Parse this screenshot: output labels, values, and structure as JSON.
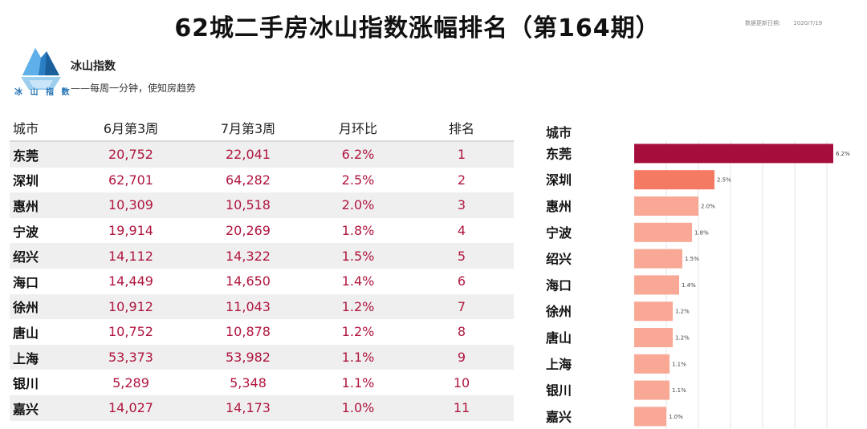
{
  "title": "62城二手房冰山指数涨幅排名（第164期）",
  "update_info": {
    "label": "数据更新日期:",
    "date": "2020/7/19"
  },
  "brand": {
    "logo_text": "冰 山 指 数",
    "name": "冰山指数",
    "slogan": "——每周一分钟，使知房趋势"
  },
  "table": {
    "headers": [
      "城市",
      "6月第3周",
      "7月第3周",
      "月环比",
      "排名"
    ],
    "rows": [
      [
        "东莞",
        "20,752",
        "22,041",
        "6.2%",
        "1"
      ],
      [
        "深圳",
        "62,701",
        "64,282",
        "2.5%",
        "2"
      ],
      [
        "惠州",
        "10,309",
        "10,518",
        "2.0%",
        "3"
      ],
      [
        "宁波",
        "19,914",
        "20,269",
        "1.8%",
        "4"
      ],
      [
        "绍兴",
        "14,112",
        "14,322",
        "1.5%",
        "5"
      ],
      [
        "海口",
        "14,449",
        "14,650",
        "1.4%",
        "6"
      ],
      [
        "徐州",
        "10,912",
        "11,043",
        "1.2%",
        "7"
      ],
      [
        "唐山",
        "10,752",
        "10,878",
        "1.2%",
        "8"
      ],
      [
        "上海",
        "53,373",
        "53,982",
        "1.1%",
        "9"
      ],
      [
        "银川",
        "5,289",
        "5,348",
        "1.1%",
        "10"
      ],
      [
        "嘉兴",
        "14,027",
        "14,173",
        "1.0%",
        "11"
      ]
    ]
  },
  "chart_data": {
    "type": "bar",
    "orientation": "horizontal",
    "category_header": "城市",
    "categories": [
      "东莞",
      "深圳",
      "惠州",
      "宁波",
      "绍兴",
      "海口",
      "徐州",
      "唐山",
      "上海",
      "银川",
      "嘉兴"
    ],
    "values": [
      6.2,
      2.5,
      2.0,
      1.8,
      1.5,
      1.4,
      1.2,
      1.2,
      1.1,
      1.1,
      1.0
    ],
    "value_labels": [
      "6.2%",
      "2.5%",
      "2.0%",
      "1.8%",
      "1.5%",
      "1.4%",
      "1.2%",
      "1.2%",
      "1.1%",
      "1.1%",
      "1.0%"
    ],
    "xlim": [
      0,
      6.5
    ],
    "grid": true,
    "colors": {
      "top": "#a50d3c",
      "second": "#f47a63",
      "others": "#f9a896"
    }
  }
}
